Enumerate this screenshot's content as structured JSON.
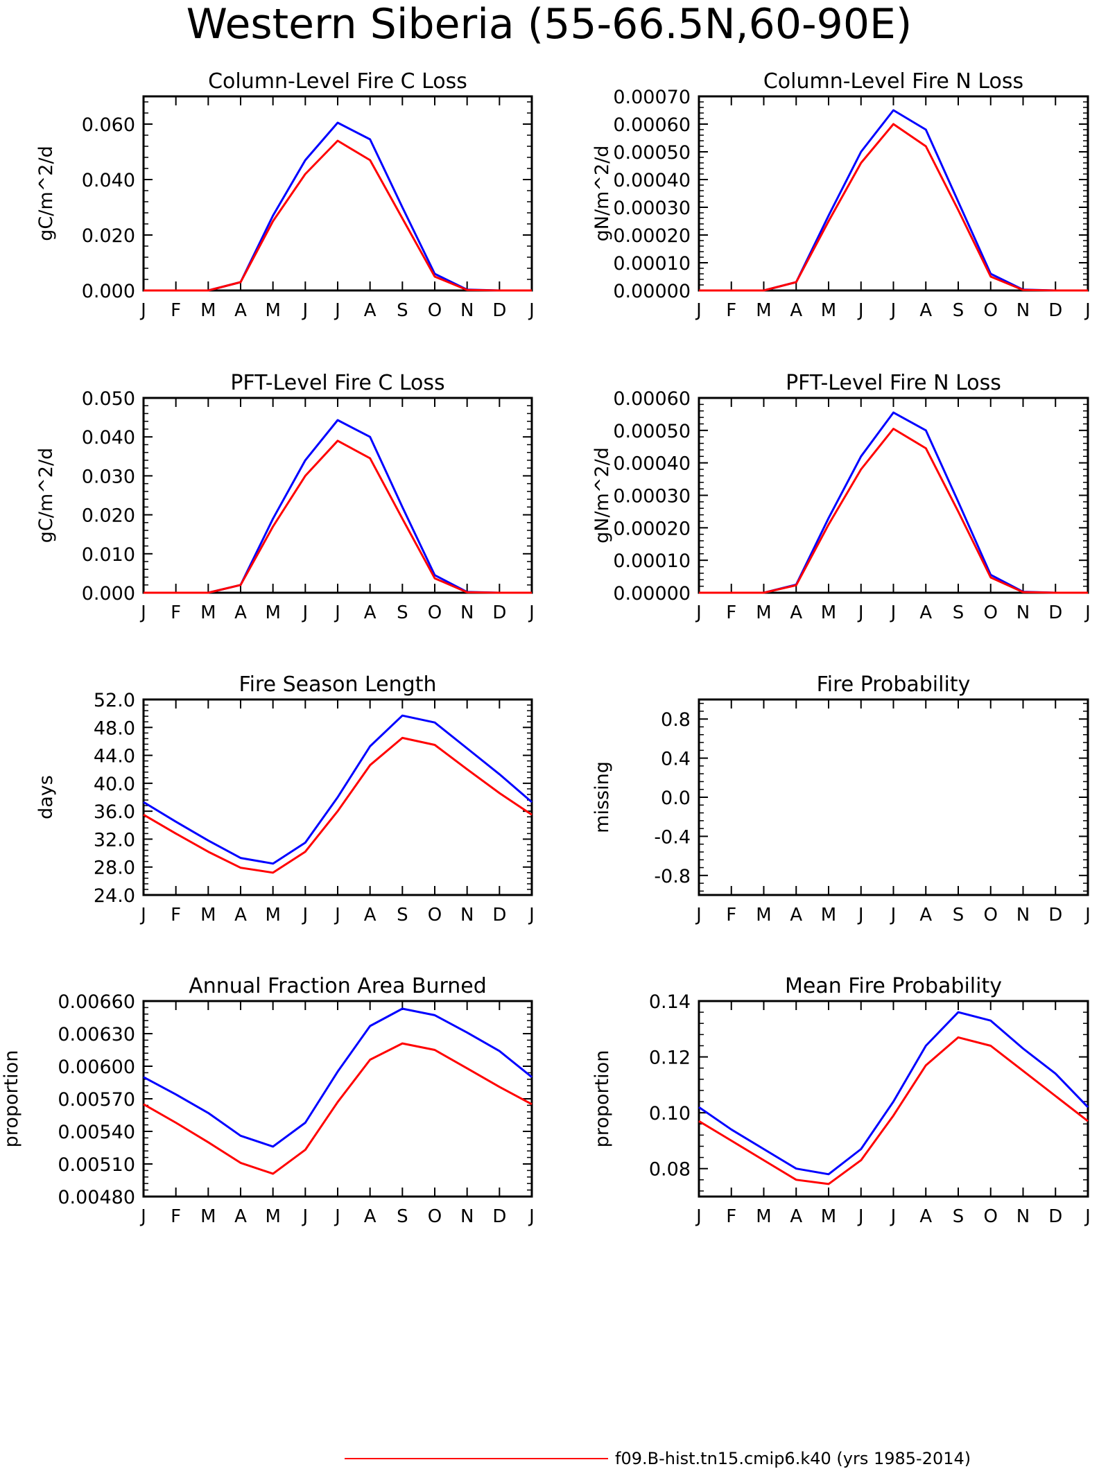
{
  "figure": {
    "title": "Western Siberia (55-66.5N,60-90E)",
    "legend": {
      "placement": "bottom-right",
      "entries": [
        {
          "label": "f09.B-hist.tn15.cmip6.k40 (yrs 1985-2014)",
          "color": "#ff0000"
        }
      ]
    }
  },
  "months": [
    "J",
    "F",
    "M",
    "A",
    "M",
    "J",
    "J",
    "A",
    "S",
    "O",
    "N",
    "D",
    "J"
  ],
  "chart_data": [
    {
      "type": "line",
      "title": "Column-Level Fire C Loss",
      "ylabel": "gC/m^2/d",
      "ylim": [
        0,
        0.07
      ],
      "yticks": [
        "0.000",
        "0.020",
        "0.040",
        "0.060"
      ],
      "yticks_at": [
        0,
        0.02,
        0.04,
        0.06
      ],
      "x": [
        "J",
        "F",
        "M",
        "A",
        "M",
        "J",
        "J",
        "A",
        "S",
        "O",
        "N",
        "D",
        "J"
      ],
      "series": [
        {
          "color": "#0000ff",
          "values": [
            0,
            0,
            0,
            0.003,
            0.027,
            0.047,
            0.0605,
            0.0545,
            0.03,
            0.006,
            0.0003,
            0,
            0
          ]
        },
        {
          "color": "#ff0000",
          "values": [
            0,
            0,
            0,
            0.003,
            0.025,
            0.042,
            0.054,
            0.047,
            0.026,
            0.005,
            0.0002,
            0,
            0
          ]
        }
      ]
    },
    {
      "type": "line",
      "title": "Column-Level Fire N Loss",
      "ylabel": "gN/m^2/d",
      "ylim": [
        0,
        0.0007
      ],
      "yticks": [
        "0.00000",
        "0.00010",
        "0.00020",
        "0.00030",
        "0.00040",
        "0.00050",
        "0.00060",
        "0.00070"
      ],
      "yticks_at": [
        0,
        0.0001,
        0.0002,
        0.0003,
        0.0004,
        0.0005,
        0.0006,
        0.0007
      ],
      "x": [
        "J",
        "F",
        "M",
        "A",
        "M",
        "J",
        "J",
        "A",
        "S",
        "O",
        "N",
        "D",
        "J"
      ],
      "series": [
        {
          "color": "#0000ff",
          "values": [
            0,
            0,
            0,
            3e-05,
            0.00027,
            0.0005,
            0.00065,
            0.00058,
            0.00032,
            6e-05,
            3e-06,
            0,
            0
          ]
        },
        {
          "color": "#ff0000",
          "values": [
            0,
            0,
            0,
            3e-05,
            0.00025,
            0.00046,
            0.0006,
            0.00052,
            0.00029,
            5e-05,
            2e-06,
            0,
            0
          ]
        }
      ]
    },
    {
      "type": "line",
      "title": "PFT-Level Fire C Loss",
      "ylabel": "gC/m^2/d",
      "ylim": [
        0,
        0.05
      ],
      "yticks": [
        "0.000",
        "0.010",
        "0.020",
        "0.030",
        "0.040",
        "0.050"
      ],
      "yticks_at": [
        0,
        0.01,
        0.02,
        0.03,
        0.04,
        0.05
      ],
      "x": [
        "J",
        "F",
        "M",
        "A",
        "M",
        "J",
        "J",
        "A",
        "S",
        "O",
        "N",
        "D",
        "J"
      ],
      "series": [
        {
          "color": "#0000ff",
          "values": [
            0,
            0,
            0,
            0.002,
            0.019,
            0.034,
            0.0443,
            0.04,
            0.022,
            0.0045,
            0.0002,
            0,
            0
          ]
        },
        {
          "color": "#ff0000",
          "values": [
            0,
            0,
            0,
            0.002,
            0.017,
            0.03,
            0.039,
            0.0345,
            0.019,
            0.0037,
            0.0001,
            0,
            0
          ]
        }
      ]
    },
    {
      "type": "line",
      "title": "PFT-Level Fire N Loss",
      "ylabel": "gN/m^2/d",
      "ylim": [
        0,
        0.0006
      ],
      "yticks": [
        "0.00000",
        "0.00010",
        "0.00020",
        "0.00030",
        "0.00040",
        "0.00050",
        "0.00060"
      ],
      "yticks_at": [
        0,
        0.0001,
        0.0002,
        0.0003,
        0.0004,
        0.0005,
        0.0006
      ],
      "x": [
        "J",
        "F",
        "M",
        "A",
        "M",
        "J",
        "J",
        "A",
        "S",
        "O",
        "N",
        "D",
        "J"
      ],
      "series": [
        {
          "color": "#0000ff",
          "values": [
            0,
            0,
            0,
            2.5e-05,
            0.00023,
            0.00042,
            0.000555,
            0.0005,
            0.00028,
            5.5e-05,
            3e-06,
            0,
            0
          ]
        },
        {
          "color": "#ff0000",
          "values": [
            0,
            0,
            0,
            2.3e-05,
            0.00021,
            0.00038,
            0.000505,
            0.000445,
            0.00025,
            4.7e-05,
            2e-06,
            0,
            0
          ]
        }
      ]
    },
    {
      "type": "line",
      "title": "Fire Season Length",
      "ylabel": "days",
      "ylim": [
        24,
        52
      ],
      "yticks": [
        "24.0",
        "28.0",
        "32.0",
        "36.0",
        "40.0",
        "44.0",
        "48.0",
        "52.0"
      ],
      "yticks_at": [
        24,
        28,
        32,
        36,
        40,
        44,
        48,
        52
      ],
      "x": [
        "J",
        "F",
        "M",
        "A",
        "M",
        "J",
        "J",
        "A",
        "S",
        "O",
        "N",
        "D",
        "J"
      ],
      "series": [
        {
          "color": "#0000ff",
          "values": [
            37.3,
            34.5,
            31.8,
            29.3,
            28.5,
            31.5,
            38.0,
            45.3,
            49.7,
            48.7,
            45.0,
            41.3,
            37.3
          ]
        },
        {
          "color": "#ff0000",
          "values": [
            35.5,
            32.8,
            30.2,
            27.9,
            27.2,
            30.2,
            36.0,
            42.6,
            46.5,
            45.5,
            42.0,
            38.6,
            35.5
          ]
        }
      ]
    },
    {
      "type": "line",
      "title": "Fire Probability",
      "ylabel": "missing",
      "ylim": [
        -1,
        1
      ],
      "yticks": [
        "-0.8",
        "-0.4",
        "0.0",
        "0.4",
        "0.8"
      ],
      "yticks_at": [
        -0.8,
        -0.4,
        0,
        0.4,
        0.8
      ],
      "x": [
        "J",
        "F",
        "M",
        "A",
        "M",
        "J",
        "J",
        "A",
        "S",
        "O",
        "N",
        "D",
        "J"
      ],
      "series": []
    },
    {
      "type": "line",
      "title": "Annual Fraction Area Burned",
      "ylabel": "proportion",
      "ylim": [
        0.0048,
        0.0066
      ],
      "yticks": [
        "0.00480",
        "0.00510",
        "0.00540",
        "0.00570",
        "0.00600",
        "0.00630",
        "0.00660"
      ],
      "yticks_at": [
        0.0048,
        0.0051,
        0.0054,
        0.0057,
        0.006,
        0.0063,
        0.0066
      ],
      "x": [
        "J",
        "F",
        "M",
        "A",
        "M",
        "J",
        "J",
        "A",
        "S",
        "O",
        "N",
        "D",
        "J"
      ],
      "series": [
        {
          "color": "#0000ff",
          "values": [
            0.0059,
            0.00574,
            0.00557,
            0.00536,
            0.00526,
            0.00548,
            0.00595,
            0.00637,
            0.00653,
            0.00647,
            0.00631,
            0.00614,
            0.0059
          ]
        },
        {
          "color": "#ff0000",
          "values": [
            0.00565,
            0.00548,
            0.0053,
            0.00511,
            0.00501,
            0.00523,
            0.00567,
            0.00606,
            0.00621,
            0.00615,
            0.00598,
            0.00581,
            0.00565
          ]
        }
      ]
    },
    {
      "type": "line",
      "title": "Mean Fire Probability",
      "ylabel": "proportion",
      "ylim": [
        0.07,
        0.14
      ],
      "yticks": [
        "0.08",
        "0.10",
        "0.12",
        "0.14"
      ],
      "yticks_at": [
        0.08,
        0.1,
        0.12,
        0.14
      ],
      "x": [
        "J",
        "F",
        "M",
        "A",
        "M",
        "J",
        "J",
        "A",
        "S",
        "O",
        "N",
        "D",
        "J"
      ],
      "series": [
        {
          "color": "#0000ff",
          "values": [
            0.102,
            0.094,
            0.087,
            0.08,
            0.078,
            0.087,
            0.104,
            0.124,
            0.136,
            0.133,
            0.123,
            0.114,
            0.102
          ]
        },
        {
          "color": "#ff0000",
          "values": [
            0.097,
            0.09,
            0.083,
            0.076,
            0.0745,
            0.083,
            0.099,
            0.117,
            0.127,
            0.124,
            0.115,
            0.106,
            0.097
          ]
        }
      ]
    }
  ]
}
